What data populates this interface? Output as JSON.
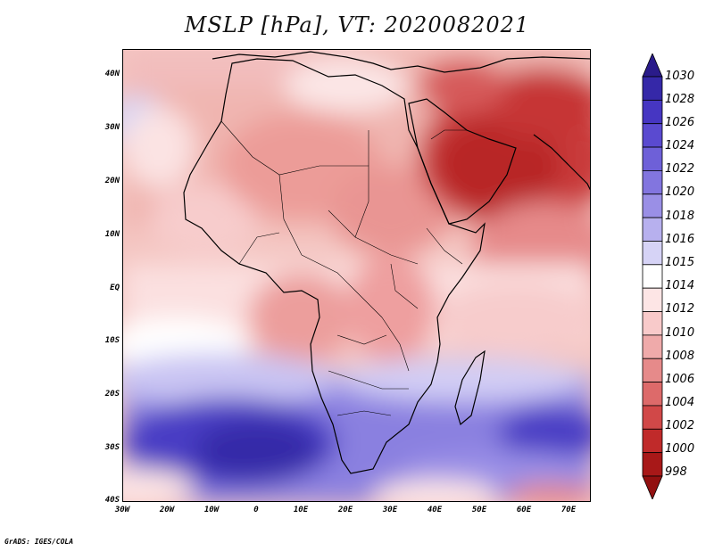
{
  "title": "MSLP [hPa], VT: 2020082021",
  "credit": "GrADS: IGES/COLA",
  "map": {
    "variable": "Mean sea level pressure",
    "units": "hPa",
    "lat_ticks": [
      "40N",
      "30N",
      "20N",
      "10N",
      "EQ",
      "10S",
      "20S",
      "30S",
      "40S"
    ],
    "lon_ticks": [
      "30W",
      "20W",
      "10W",
      "0",
      "10E",
      "20E",
      "30E",
      "40E",
      "50E",
      "60E",
      "70E"
    ]
  },
  "colorbar": {
    "levels": [
      "1030",
      "1028",
      "1026",
      "1024",
      "1022",
      "1020",
      "1018",
      "1016",
      "1015",
      "1014",
      "1012",
      "1010",
      "1008",
      "1006",
      "1004",
      "1002",
      "1000",
      "998"
    ],
    "colors": [
      "#2a1b8a",
      "#3528a8",
      "#4636c2",
      "#5a4ad0",
      "#6e60d8",
      "#8275df",
      "#9a8fe6",
      "#b7b0ee",
      "#d6d3f6",
      "#ffffff",
      "#fde5e5",
      "#f8caca",
      "#efaaaa",
      "#e68a8a",
      "#dd6a6a",
      "#d14848",
      "#c02a2a",
      "#a81818",
      "#921010"
    ]
  }
}
